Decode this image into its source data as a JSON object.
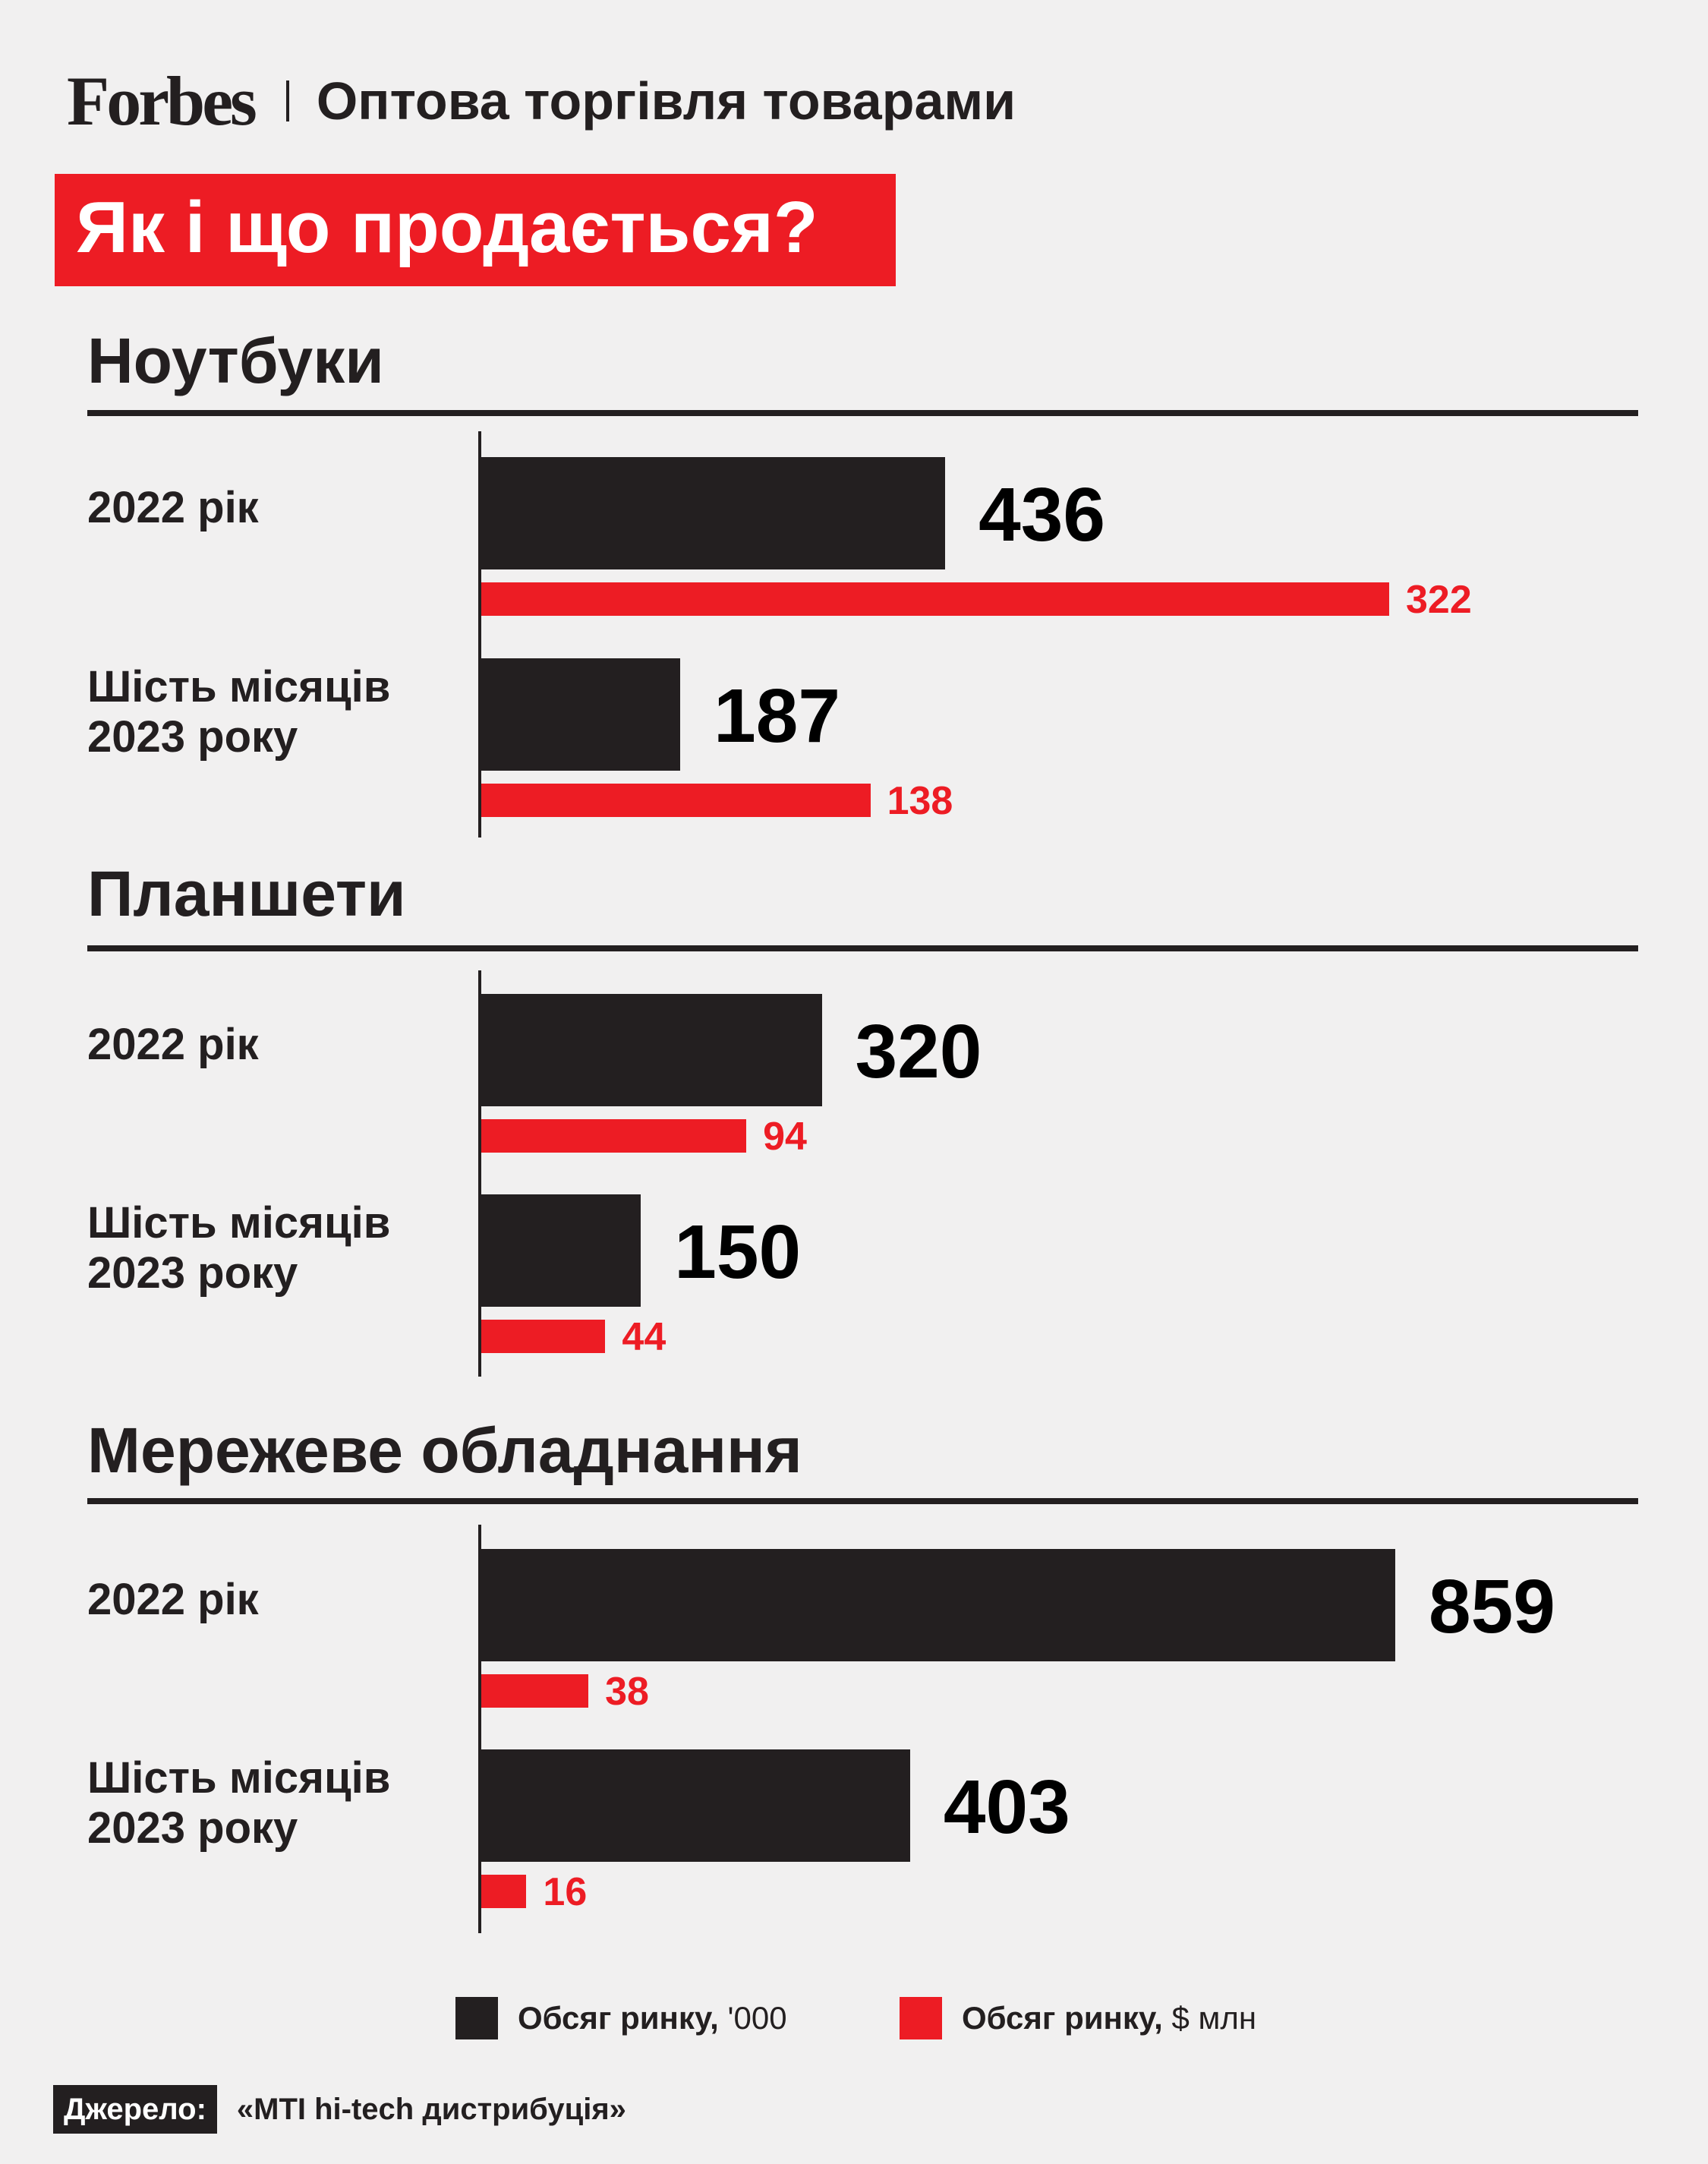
{
  "header": {
    "brand": "Forbes",
    "section": "Оптова торгівля товарами"
  },
  "headline": "Як і що продається?",
  "colors": {
    "black": "#231f20",
    "red": "#ed1c24",
    "background": "#f1f0f0"
  },
  "chart_data": {
    "type": "bar",
    "orientation": "horizontal",
    "groups": [
      {
        "title": "Ноутбуки",
        "rows": [
          {
            "label": "2022 рік",
            "units_thousand": 436,
            "value_usd_mln": 322
          },
          {
            "label": "Шість місяців 2023 року",
            "units_thousand": 187,
            "value_usd_mln": 138
          }
        ]
      },
      {
        "title": "Планшети",
        "rows": [
          {
            "label": "2022 рік",
            "units_thousand": 320,
            "value_usd_mln": 94
          },
          {
            "label": "Шість місяців 2023 року",
            "units_thousand": 150,
            "value_usd_mln": 44
          }
        ]
      },
      {
        "title": "Мережеве обладнання",
        "rows": [
          {
            "label": "2022 рік",
            "units_thousand": 859,
            "value_usd_mln": 38
          },
          {
            "label": "Шість місяців 2023 року",
            "units_thousand": 403,
            "value_usd_mln": 16
          }
        ]
      }
    ],
    "series": [
      {
        "name": "Обсяг ринку, '000",
        "bold": "Обсяг ринку,",
        "rest": " '000",
        "color": "#231f20"
      },
      {
        "name": "Обсяг ринку, $ млн",
        "bold": "Обсяг ринку,",
        "rest": " $ млн",
        "color": "#ed1c24"
      }
    ],
    "legend_position": "bottom",
    "grid": false
  },
  "source": {
    "label": "Джерело:",
    "text": "«MTI hi-tech дистрибуція»"
  }
}
